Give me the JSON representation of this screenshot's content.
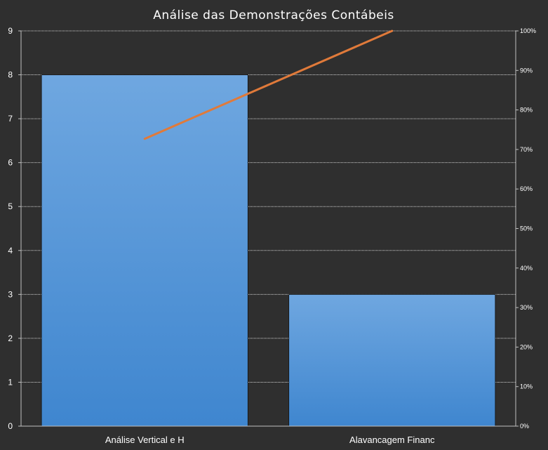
{
  "chart_data": {
    "type": "bar",
    "title": "Análise das Demonstrações Contábeis",
    "categories": [
      "Análise Vertical e H",
      "Alavancagem Financ"
    ],
    "series": [
      {
        "type": "bar",
        "values": [
          8,
          3
        ],
        "axis": "left"
      },
      {
        "type": "line",
        "values": [
          72.7,
          100
        ],
        "axis": "right"
      }
    ],
    "y_left": {
      "min": 0,
      "max": 9,
      "ticks": [
        "0",
        "1",
        "2",
        "3",
        "4",
        "5",
        "6",
        "7",
        "8",
        "9"
      ]
    },
    "y_right": {
      "min": 0,
      "max": 100,
      "ticks": [
        "0%",
        "10%",
        "20%",
        "30%",
        "40%",
        "50%",
        "60%",
        "70%",
        "80%",
        "90%",
        "100%"
      ]
    },
    "grid": true,
    "legend": "none",
    "colors": {
      "bar_top": "#6fa7e0",
      "bar_bottom": "#3f86cf",
      "line": "#e07a3a",
      "background": "#2f2f2f"
    }
  }
}
